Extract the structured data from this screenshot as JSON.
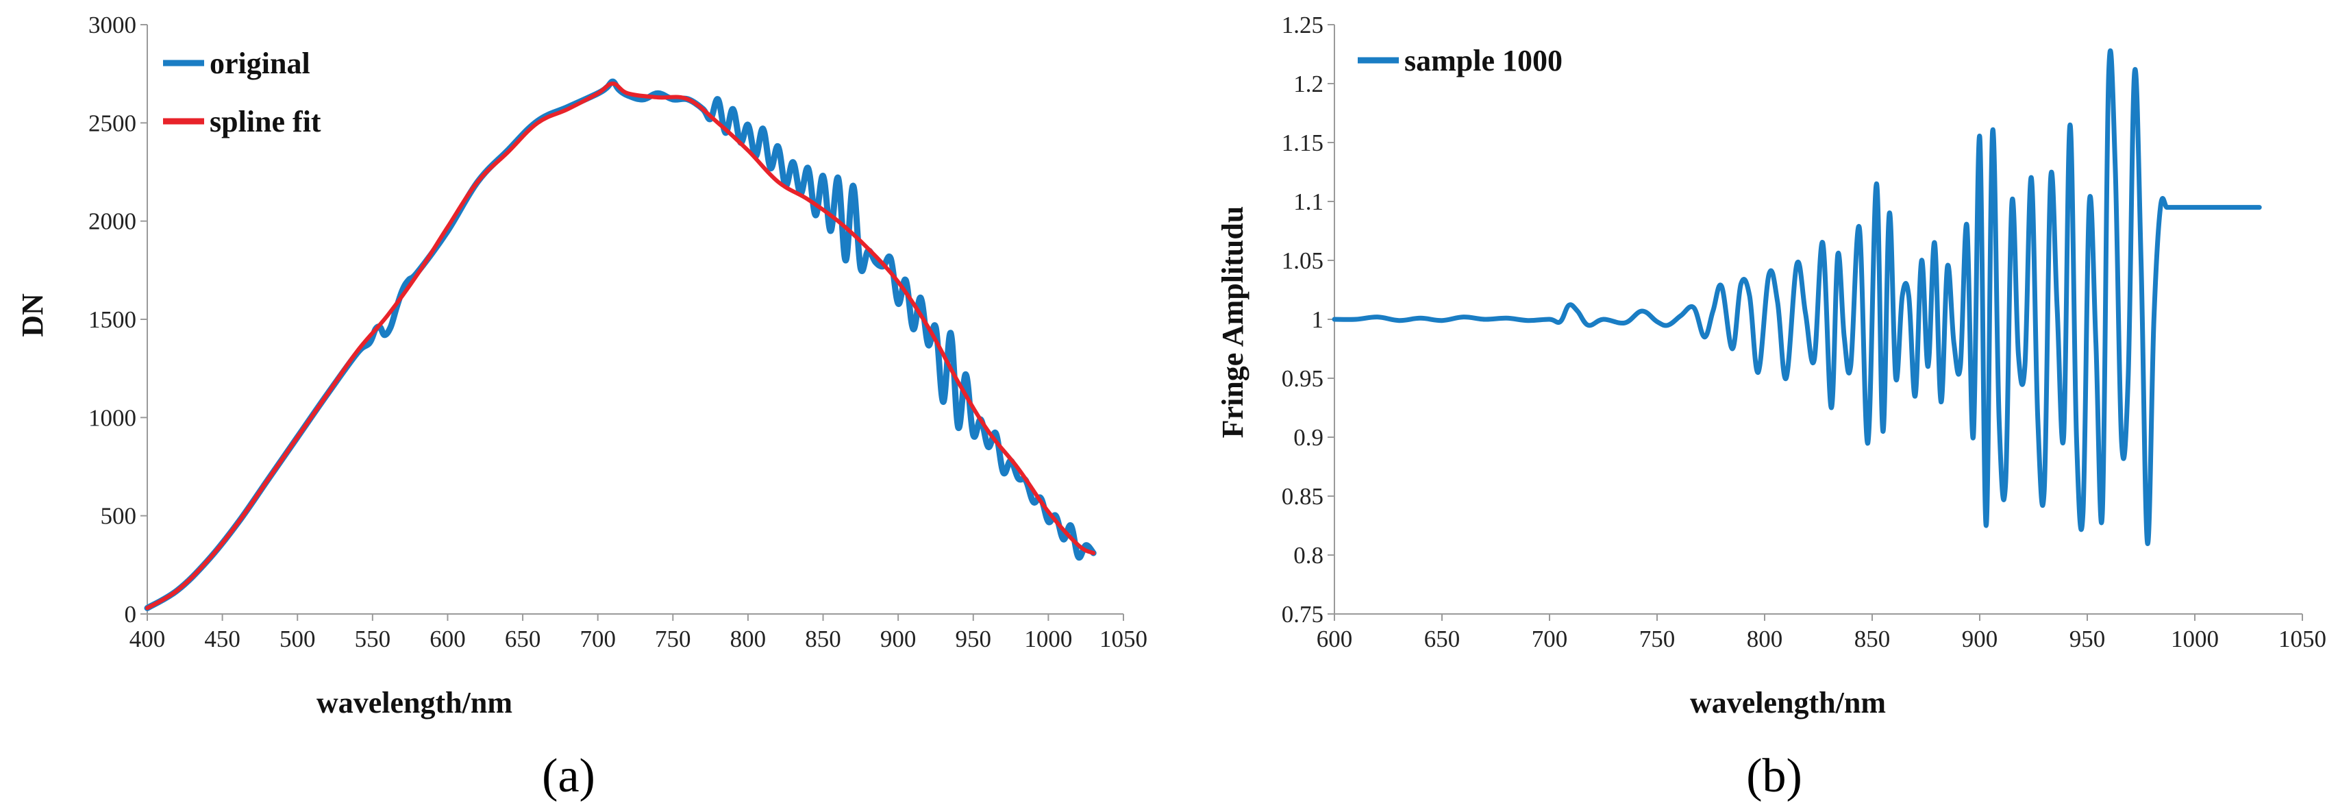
{
  "colors": {
    "blue": "#1a7dc4",
    "red": "#e8232a"
  },
  "chart_data": [
    {
      "type": "line",
      "panel_label": "(a)",
      "xlabel": "wavelength/nm",
      "ylabel": "DN",
      "xlim": [
        400,
        1050
      ],
      "ylim": [
        0,
        3000
      ],
      "xticks": [
        400,
        450,
        500,
        550,
        600,
        650,
        700,
        750,
        800,
        850,
        900,
        950,
        1000,
        1050
      ],
      "yticks": [
        0,
        500,
        1000,
        1500,
        2000,
        2500,
        3000
      ],
      "legend": {
        "position": "top-left",
        "entries": [
          "original",
          "spline fit"
        ]
      },
      "series": [
        {
          "name": "original",
          "color": "#1a7dc4",
          "x": [
            400,
            420,
            440,
            460,
            480,
            500,
            520,
            540,
            548,
            552,
            555,
            558,
            562,
            566,
            570,
            574,
            580,
            600,
            620,
            640,
            660,
            680,
            700,
            706,
            710,
            714,
            720,
            730,
            740,
            750,
            760,
            770,
            775,
            780,
            785,
            790,
            795,
            800,
            805,
            810,
            815,
            820,
            825,
            830,
            835,
            840,
            845,
            850,
            855,
            860,
            865,
            870,
            875,
            880,
            885,
            890,
            895,
            900,
            905,
            910,
            915,
            920,
            925,
            930,
            935,
            940,
            945,
            950,
            955,
            960,
            965,
            970,
            975,
            980,
            985,
            990,
            995,
            1000,
            1005,
            1010,
            1015,
            1020,
            1025,
            1030
          ],
          "values": [
            30,
            120,
            270,
            460,
            680,
            900,
            1120,
            1330,
            1380,
            1450,
            1460,
            1420,
            1460,
            1560,
            1650,
            1700,
            1740,
            1950,
            2200,
            2360,
            2510,
            2580,
            2650,
            2680,
            2710,
            2670,
            2640,
            2620,
            2650,
            2620,
            2620,
            2570,
            2520,
            2620,
            2450,
            2570,
            2400,
            2490,
            2330,
            2470,
            2270,
            2380,
            2180,
            2300,
            2140,
            2270,
            2030,
            2230,
            1950,
            2220,
            1800,
            2180,
            1760,
            1850,
            1790,
            1770,
            1810,
            1580,
            1700,
            1450,
            1610,
            1370,
            1460,
            1080,
            1430,
            950,
            1220,
            910,
            990,
            850,
            920,
            720,
            780,
            690,
            680,
            570,
            590,
            470,
            500,
            380,
            450,
            290,
            350,
            310
          ]
        },
        {
          "name": "spline fit",
          "color": "#e8232a",
          "x": [
            400,
            420,
            440,
            460,
            480,
            500,
            520,
            540,
            560,
            580,
            600,
            620,
            640,
            660,
            680,
            700,
            710,
            720,
            740,
            760,
            780,
            800,
            820,
            840,
            860,
            880,
            900,
            920,
            940,
            960,
            980,
            1000,
            1020,
            1030
          ],
          "values": [
            30,
            120,
            270,
            460,
            680,
            900,
            1120,
            1340,
            1520,
            1730,
            1970,
            2200,
            2350,
            2500,
            2570,
            2650,
            2700,
            2650,
            2630,
            2620,
            2500,
            2360,
            2200,
            2110,
            2000,
            1860,
            1690,
            1460,
            1180,
            930,
            740,
            520,
            350,
            310
          ]
        }
      ]
    },
    {
      "type": "line",
      "panel_label": "(b)",
      "xlabel": "wavelength/nm",
      "ylabel": "Fringe Amplitudu",
      "xlim": [
        600,
        1050
      ],
      "ylim": [
        0.75,
        1.25
      ],
      "xticks": [
        600,
        650,
        700,
        750,
        800,
        850,
        900,
        950,
        1000,
        1050
      ],
      "yticks": [
        0.75,
        0.8,
        0.85,
        0.9,
        0.95,
        1,
        1.05,
        1.1,
        1.15,
        1.2,
        1.25
      ],
      "legend": {
        "position": "top-left",
        "entries": [
          "sample 1000"
        ]
      },
      "series": [
        {
          "name": "sample 1000",
          "color": "#1a7dc4",
          "x": [
            600,
            610,
            620,
            630,
            640,
            650,
            660,
            670,
            680,
            690,
            700,
            705,
            709,
            713,
            718,
            725,
            735,
            743,
            750,
            755,
            761,
            767,
            772,
            776,
            780,
            785,
            789,
            793,
            797,
            802,
            806,
            810,
            815,
            819,
            823,
            827,
            831,
            834,
            837,
            840,
            844,
            848,
            852,
            855,
            858,
            861,
            864,
            867,
            870,
            873,
            876,
            879,
            882,
            885,
            888,
            891,
            894,
            897,
            900,
            903,
            906,
            909,
            912,
            915,
            918,
            921,
            924,
            927,
            930,
            933,
            936,
            939,
            942,
            945,
            948,
            951,
            954,
            957,
            960,
            963,
            966,
            969,
            972,
            975,
            978,
            981,
            984,
            987,
            990,
            993,
            996,
            999,
            1002,
            1005,
            1008,
            1011,
            1014,
            1017,
            1020,
            1023,
            1026,
            1029,
            1030
          ],
          "values": [
            1.0,
            1.0,
            1.002,
            0.999,
            1.001,
            0.999,
            1.002,
            1.0,
            1.001,
            0.999,
            1.0,
            0.998,
            1.012,
            1.007,
            0.995,
            1.0,
            0.997,
            1.007,
            0.998,
            0.995,
            1.003,
            1.01,
            0.985,
            1.007,
            1.028,
            0.975,
            1.03,
            1.02,
            0.955,
            1.038,
            1.015,
            0.95,
            1.047,
            1.005,
            0.965,
            1.065,
            0.925,
            1.055,
            0.985,
            0.96,
            1.078,
            0.895,
            1.115,
            0.905,
            1.09,
            0.95,
            1.02,
            1.02,
            0.935,
            1.05,
            0.96,
            1.065,
            0.93,
            1.045,
            0.98,
            0.96,
            1.08,
            0.9,
            1.155,
            0.825,
            1.16,
            0.915,
            0.86,
            1.1,
            0.97,
            0.96,
            1.12,
            0.915,
            0.855,
            1.12,
            1.01,
            0.9,
            1.165,
            0.9,
            0.835,
            1.1,
            0.98,
            0.835,
            1.21,
            1.13,
            0.895,
            0.95,
            1.21,
            1.05,
            0.81,
            1.0,
            1.095,
            1.095,
            1.095,
            1.095,
            1.095,
            1.095,
            1.095,
            1.095,
            1.095,
            1.095,
            1.095,
            1.095,
            1.095,
            1.095,
            1.095,
            1.095,
            1.095
          ]
        }
      ]
    }
  ]
}
